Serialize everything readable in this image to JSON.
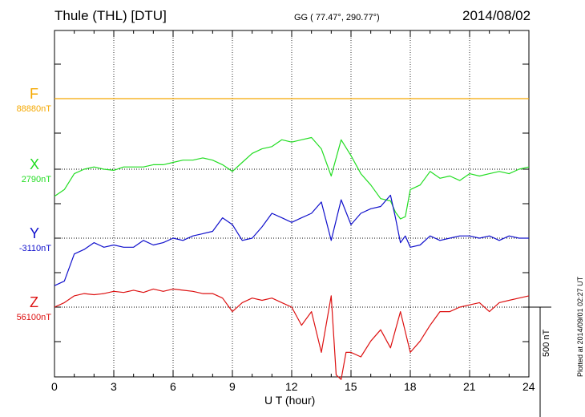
{
  "header": {
    "station": "Thule (THL)  [DTU]",
    "coords": "GG ( 77.47°, 290.77°)",
    "date": "2014/08/02"
  },
  "plotted_note": "Plotted at 2014/09/01 02:27 UT",
  "scale_label": "500 nT",
  "colors": {
    "F": "#f5a800",
    "X": "#22dd22",
    "Y": "#1010cc",
    "Z": "#dd1111"
  },
  "chart_data": {
    "type": "line",
    "xlabel": "U T (hour)",
    "xlim": [
      0,
      24
    ],
    "xticks": [
      "0",
      "3",
      "6",
      "9",
      "12",
      "15",
      "18",
      "21",
      "24"
    ],
    "scale_nT": 500,
    "series": [
      {
        "name": "F",
        "baseline_label": "88880nT",
        "baseline_nT": 88880,
        "x": [
          0,
          24
        ],
        "y": [
          88880,
          88880
        ]
      },
      {
        "name": "X",
        "baseline_label": "2790nT",
        "baseline_nT": 2790,
        "x": [
          0,
          0.5,
          1,
          1.5,
          2,
          2.5,
          3,
          3.5,
          4,
          4.5,
          5,
          5.5,
          6,
          6.5,
          7,
          7.5,
          8,
          8.5,
          9,
          9.5,
          10,
          10.5,
          11,
          11.5,
          12,
          12.5,
          13,
          13.5,
          14,
          14.5,
          15,
          15.5,
          16,
          16.5,
          17,
          17.25,
          17.5,
          17.75,
          18,
          18.5,
          19,
          19.5,
          20,
          20.5,
          21,
          21.5,
          22,
          22.5,
          23,
          23.5,
          24
        ],
        "y": [
          2670,
          2700,
          2770,
          2790,
          2800,
          2790,
          2785,
          2800,
          2800,
          2800,
          2810,
          2810,
          2820,
          2830,
          2830,
          2840,
          2830,
          2810,
          2780,
          2820,
          2860,
          2880,
          2890,
          2920,
          2910,
          2920,
          2930,
          2880,
          2760,
          2920,
          2850,
          2770,
          2720,
          2660,
          2650,
          2600,
          2570,
          2580,
          2700,
          2720,
          2780,
          2750,
          2760,
          2740,
          2770,
          2760,
          2770,
          2780,
          2770,
          2790,
          2800
        ]
      },
      {
        "name": "Y",
        "baseline_label": "-3110nT",
        "baseline_nT": -3110,
        "x": [
          0,
          0.5,
          1,
          1.5,
          2,
          2.5,
          3,
          3.5,
          4,
          4.5,
          5,
          5.5,
          6,
          6.5,
          7,
          7.5,
          8,
          8.5,
          9,
          9.5,
          10,
          10.5,
          11,
          11.5,
          12,
          12.5,
          13,
          13.5,
          14,
          14.5,
          15,
          15.5,
          16,
          16.5,
          17,
          17.25,
          17.5,
          17.75,
          18,
          18.5,
          19,
          19.5,
          20,
          20.5,
          21,
          21.5,
          22,
          22.5,
          23,
          23.5,
          24
        ],
        "y": [
          -3320,
          -3300,
          -3180,
          -3160,
          -3130,
          -3150,
          -3140,
          -3150,
          -3150,
          -3120,
          -3140,
          -3130,
          -3110,
          -3120,
          -3100,
          -3090,
          -3080,
          -3020,
          -3050,
          -3120,
          -3110,
          -3060,
          -3000,
          -3020,
          -3040,
          -3020,
          -3000,
          -2950,
          -3120,
          -2940,
          -3050,
          -3000,
          -2980,
          -2970,
          -2920,
          -3020,
          -3130,
          -3100,
          -3150,
          -3140,
          -3100,
          -3120,
          -3110,
          -3100,
          -3100,
          -3110,
          -3100,
          -3120,
          -3100,
          -3110,
          -3110
        ]
      },
      {
        "name": "Z",
        "baseline_label": "56100nT",
        "baseline_nT": 56100,
        "x": [
          0,
          0.5,
          1,
          1.5,
          2,
          2.5,
          3,
          3.5,
          4,
          4.5,
          5,
          5.5,
          6,
          6.5,
          7,
          7.5,
          8,
          8.5,
          9,
          9.5,
          10,
          10.5,
          11,
          11.5,
          12,
          12.5,
          13,
          13.5,
          14,
          14.25,
          14.5,
          14.75,
          15,
          15.5,
          16,
          16.5,
          17,
          17.5,
          18,
          18.5,
          19,
          19.5,
          20,
          20.5,
          21,
          21.5,
          22,
          22.5,
          23,
          23.5,
          24
        ],
        "y": [
          56100,
          56120,
          56150,
          56160,
          56155,
          56160,
          56170,
          56165,
          56175,
          56165,
          56180,
          56170,
          56180,
          56175,
          56170,
          56160,
          56160,
          56140,
          56080,
          56120,
          56140,
          56130,
          56140,
          56120,
          56100,
          56020,
          56080,
          55900,
          56150,
          55800,
          55780,
          55900,
          55900,
          55880,
          55950,
          56000,
          55920,
          56080,
          55900,
          55950,
          56020,
          56080,
          56080,
          56100,
          56110,
          56120,
          56080,
          56120,
          56130,
          56140,
          56150
        ]
      }
    ]
  }
}
